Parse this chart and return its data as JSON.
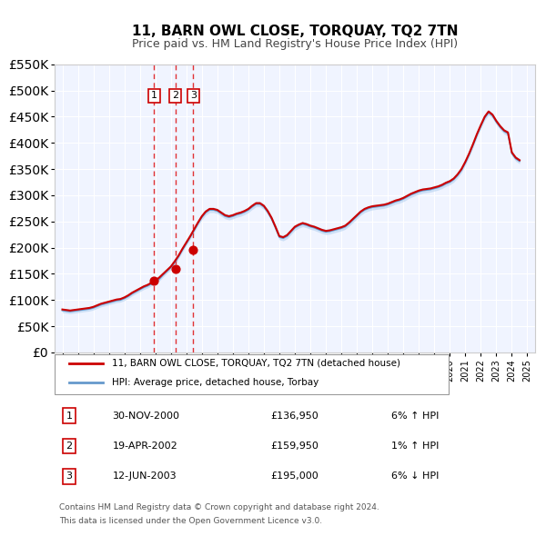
{
  "title": "11, BARN OWL CLOSE, TORQUAY, TQ2 7TN",
  "subtitle": "Price paid vs. HM Land Registry's House Price Index (HPI)",
  "legend_line1": "11, BARN OWL CLOSE, TORQUAY, TQ2 7TN (detached house)",
  "legend_line2": "HPI: Average price, detached house, Torbay",
  "footer1": "Contains HM Land Registry data © Crown copyright and database right 2024.",
  "footer2": "This data is licensed under the Open Government Licence v3.0.",
  "transactions": [
    {
      "num": 1,
      "date": "30-NOV-2000",
      "price": 136950,
      "pct": "6%",
      "dir": "↑",
      "year": 2000.92
    },
    {
      "num": 2,
      "date": "19-APR-2002",
      "price": 159950,
      "pct": "1%",
      "dir": "↑",
      "year": 2002.29
    },
    {
      "num": 3,
      "date": "12-JUN-2003",
      "price": 195000,
      "pct": "6%",
      "dir": "↓",
      "year": 2003.45
    }
  ],
  "price_color": "#cc0000",
  "hpi_color": "#6699cc",
  "hpi_fill_color": "#aaccee",
  "vline_color": "#dd0000",
  "background_color": "#ffffff",
  "plot_bg_color": "#f0f4ff",
  "grid_color": "#ffffff",
  "ylim": [
    0,
    550000
  ],
  "yticks": [
    0,
    50000,
    100000,
    150000,
    200000,
    250000,
    300000,
    350000,
    400000,
    450000,
    500000,
    550000
  ],
  "xmin": 1994.5,
  "xmax": 2025.5,
  "hpi_data": {
    "years": [
      1995,
      1995.25,
      1995.5,
      1995.75,
      1996,
      1996.25,
      1996.5,
      1996.75,
      1997,
      1997.25,
      1997.5,
      1997.75,
      1998,
      1998.25,
      1998.5,
      1998.75,
      1999,
      1999.25,
      1999.5,
      1999.75,
      2000,
      2000.25,
      2000.5,
      2000.75,
      2001,
      2001.25,
      2001.5,
      2001.75,
      2002,
      2002.25,
      2002.5,
      2002.75,
      2003,
      2003.25,
      2003.5,
      2003.75,
      2004,
      2004.25,
      2004.5,
      2004.75,
      2005,
      2005.25,
      2005.5,
      2005.75,
      2006,
      2006.25,
      2006.5,
      2006.75,
      2007,
      2007.25,
      2007.5,
      2007.75,
      2008,
      2008.25,
      2008.5,
      2008.75,
      2009,
      2009.25,
      2009.5,
      2009.75,
      2010,
      2010.25,
      2010.5,
      2010.75,
      2011,
      2011.25,
      2011.5,
      2011.75,
      2012,
      2012.25,
      2012.5,
      2012.75,
      2013,
      2013.25,
      2013.5,
      2013.75,
      2014,
      2014.25,
      2014.5,
      2014.75,
      2015,
      2015.25,
      2015.5,
      2015.75,
      2016,
      2016.25,
      2016.5,
      2016.75,
      2017,
      2017.25,
      2017.5,
      2017.75,
      2018,
      2018.25,
      2018.5,
      2018.75,
      2019,
      2019.25,
      2019.5,
      2019.75,
      2020,
      2020.25,
      2020.5,
      2020.75,
      2021,
      2021.25,
      2021.5,
      2021.75,
      2022,
      2022.25,
      2022.5,
      2022.75,
      2023,
      2023.25,
      2023.5,
      2023.75,
      2024,
      2024.25,
      2024.5
    ],
    "values": [
      80000,
      79000,
      78000,
      79000,
      80000,
      81000,
      82000,
      83000,
      85000,
      88000,
      91000,
      93000,
      95000,
      97000,
      99000,
      100000,
      103000,
      107000,
      112000,
      116000,
      120000,
      124000,
      127000,
      131000,
      135000,
      140000,
      148000,
      155000,
      162000,
      172000,
      183000,
      196000,
      208000,
      220000,
      233000,
      246000,
      258000,
      267000,
      272000,
      272000,
      270000,
      265000,
      260000,
      258000,
      260000,
      263000,
      265000,
      268000,
      272000,
      278000,
      283000,
      283000,
      278000,
      268000,
      255000,
      238000,
      220000,
      218000,
      222000,
      230000,
      238000,
      242000,
      245000,
      243000,
      240000,
      238000,
      235000,
      232000,
      230000,
      231000,
      233000,
      235000,
      237000,
      240000,
      246000,
      253000,
      260000,
      267000,
      272000,
      275000,
      277000,
      278000,
      279000,
      280000,
      282000,
      285000,
      288000,
      290000,
      293000,
      297000,
      301000,
      304000,
      307000,
      309000,
      310000,
      311000,
      313000,
      315000,
      318000,
      322000,
      325000,
      330000,
      338000,
      348000,
      362000,
      378000,
      396000,
      415000,
      432000,
      448000,
      458000,
      452000,
      440000,
      430000,
      422000,
      418000,
      380000,
      370000,
      365000
    ],
    "lower": [
      76000,
      75000,
      74000,
      75000,
      76000,
      77000,
      78000,
      79000,
      81000,
      84000,
      87000,
      89000,
      91000,
      93000,
      95000,
      96000,
      99000,
      103000,
      108000,
      112000,
      116000,
      120000,
      123000,
      127000,
      131000,
      136000,
      144000,
      151000,
      158000,
      168000,
      179000,
      192000,
      204000,
      216000,
      229000,
      242000,
      253000,
      262000,
      267000,
      267000,
      265000,
      260000,
      255000,
      253000,
      255000,
      258000,
      260000,
      263000,
      267000,
      273000,
      278000,
      278000,
      273000,
      263000,
      250000,
      233000,
      215000,
      213000,
      217000,
      225000,
      233000,
      237000,
      240000,
      238000,
      235000,
      233000,
      230000,
      227000,
      225000,
      226000,
      228000,
      230000,
      232000,
      235000,
      241000,
      248000,
      255000,
      262000,
      267000,
      270000,
      272000,
      273000,
      274000,
      275000,
      277000,
      280000,
      283000,
      285000,
      288000,
      292000,
      296000,
      299000,
      302000,
      304000,
      305000,
      306000,
      308000,
      310000,
      313000,
      317000,
      320000,
      325000,
      333000,
      343000,
      357000,
      373000,
      391000,
      410000,
      427000,
      443000,
      453000,
      447000,
      435000,
      425000,
      417000,
      413000,
      375000,
      365000,
      360000
    ],
    "upper": [
      84000,
      83000,
      82000,
      83000,
      84000,
      85000,
      86000,
      87000,
      89000,
      92000,
      95000,
      97000,
      99000,
      101000,
      103000,
      104000,
      107000,
      111000,
      116000,
      120000,
      124000,
      128000,
      131000,
      135000,
      139000,
      144000,
      152000,
      159000,
      166000,
      176000,
      187000,
      200000,
      212000,
      224000,
      237000,
      250000,
      263000,
      272000,
      277000,
      277000,
      275000,
      270000,
      265000,
      263000,
      265000,
      268000,
      270000,
      273000,
      277000,
      283000,
      288000,
      288000,
      283000,
      273000,
      260000,
      243000,
      225000,
      223000,
      227000,
      235000,
      243000,
      247000,
      250000,
      248000,
      245000,
      243000,
      240000,
      237000,
      235000,
      236000,
      238000,
      240000,
      242000,
      245000,
      251000,
      258000,
      265000,
      272000,
      277000,
      280000,
      282000,
      283000,
      284000,
      285000,
      287000,
      290000,
      293000,
      295000,
      298000,
      302000,
      306000,
      309000,
      312000,
      314000,
      315000,
      316000,
      318000,
      320000,
      323000,
      327000,
      330000,
      335000,
      343000,
      353000,
      367000,
      383000,
      401000,
      420000,
      437000,
      453000,
      463000,
      457000,
      445000,
      435000,
      427000,
      423000,
      385000,
      375000,
      370000
    ]
  },
  "price_series": {
    "years": [
      1995,
      1995.25,
      1995.5,
      1995.75,
      1996,
      1996.25,
      1996.5,
      1996.75,
      1997,
      1997.25,
      1997.5,
      1997.75,
      1998,
      1998.25,
      1998.5,
      1998.75,
      1999,
      1999.25,
      1999.5,
      1999.75,
      2000,
      2000.25,
      2000.5,
      2000.75,
      2001,
      2001.25,
      2001.5,
      2001.75,
      2002,
      2002.25,
      2002.5,
      2002.75,
      2003,
      2003.25,
      2003.5,
      2003.75,
      2004,
      2004.25,
      2004.5,
      2004.75,
      2005,
      2005.25,
      2005.5,
      2005.75,
      2006,
      2006.25,
      2006.5,
      2006.75,
      2007,
      2007.25,
      2007.5,
      2007.75,
      2008,
      2008.25,
      2008.5,
      2008.75,
      2009,
      2009.25,
      2009.5,
      2009.75,
      2010,
      2010.25,
      2010.5,
      2010.75,
      2011,
      2011.25,
      2011.5,
      2011.75,
      2012,
      2012.25,
      2012.5,
      2012.75,
      2013,
      2013.25,
      2013.5,
      2013.75,
      2014,
      2014.25,
      2014.5,
      2014.75,
      2015,
      2015.25,
      2015.5,
      2015.75,
      2016,
      2016.25,
      2016.5,
      2016.75,
      2017,
      2017.25,
      2017.5,
      2017.75,
      2018,
      2018.25,
      2018.5,
      2018.75,
      2019,
      2019.25,
      2019.5,
      2019.75,
      2020,
      2020.25,
      2020.5,
      2020.75,
      2021,
      2021.25,
      2021.5,
      2021.75,
      2022,
      2022.25,
      2022.5,
      2022.75,
      2023,
      2023.25,
      2023.5,
      2023.75,
      2024,
      2024.25,
      2024.5
    ],
    "values": [
      82000,
      81000,
      80000,
      81000,
      82000,
      83000,
      84000,
      85000,
      87000,
      90000,
      93000,
      95000,
      97000,
      99000,
      101000,
      102000,
      105000,
      109000,
      114000,
      118000,
      122000,
      126000,
      129000,
      133000,
      137000,
      143000,
      150000,
      157000,
      164000,
      174000,
      185000,
      198000,
      210000,
      222000,
      235000,
      248000,
      260000,
      269000,
      274000,
      274000,
      272000,
      267000,
      262000,
      260000,
      262000,
      265000,
      267000,
      270000,
      274000,
      280000,
      285000,
      285000,
      280000,
      270000,
      257000,
      240000,
      222000,
      220000,
      224000,
      232000,
      240000,
      244000,
      247000,
      245000,
      242000,
      240000,
      237000,
      234000,
      232000,
      233000,
      235000,
      237000,
      239000,
      242000,
      248000,
      255000,
      262000,
      269000,
      274000,
      277000,
      279000,
      280000,
      281000,
      282000,
      284000,
      287000,
      290000,
      292000,
      295000,
      299000,
      303000,
      306000,
      309000,
      311000,
      312000,
      313000,
      315000,
      317000,
      320000,
      324000,
      327000,
      332000,
      340000,
      350000,
      364000,
      380000,
      398000,
      417000,
      434000,
      450000,
      460000,
      454000,
      442000,
      432000,
      424000,
      420000,
      382000,
      372000,
      367000
    ]
  }
}
